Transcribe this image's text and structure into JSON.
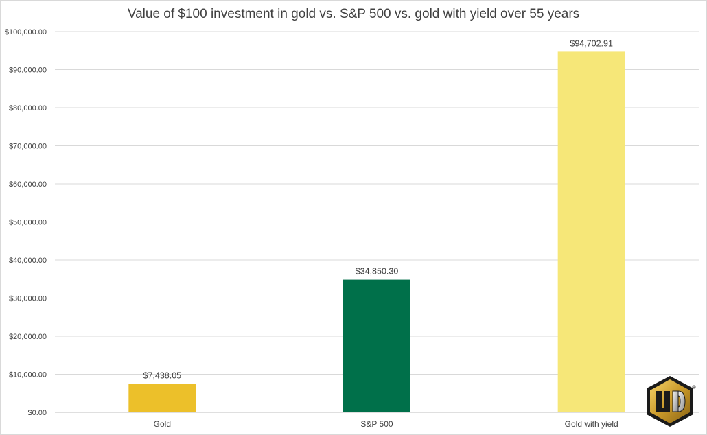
{
  "chart_data": {
    "type": "bar",
    "title": "Value of $100 investment in gold vs. S&P 500 vs. gold with yield over 55 years",
    "categories": [
      "Gold",
      "S&P 500",
      "Gold with yield"
    ],
    "values": [
      7438.05,
      34850.3,
      94702.91
    ],
    "data_labels": [
      "$7,438.05",
      "$34,850.30",
      "$94,702.91"
    ],
    "colors": [
      "#ecc02a",
      "#00704a",
      "#f6e778"
    ],
    "ylim": [
      0,
      100000
    ],
    "yticks": [
      "$0.00",
      "$10,000.00",
      "$20,000.00",
      "$30,000.00",
      "$40,000.00",
      "$50,000.00",
      "$60,000.00",
      "$70,000.00",
      "$80,000.00",
      "$90,000.00",
      "$100,000.00"
    ],
    "grid": true,
    "legend": "none"
  },
  "logo": {
    "name": "ud-logo-icon",
    "mark": "®"
  }
}
